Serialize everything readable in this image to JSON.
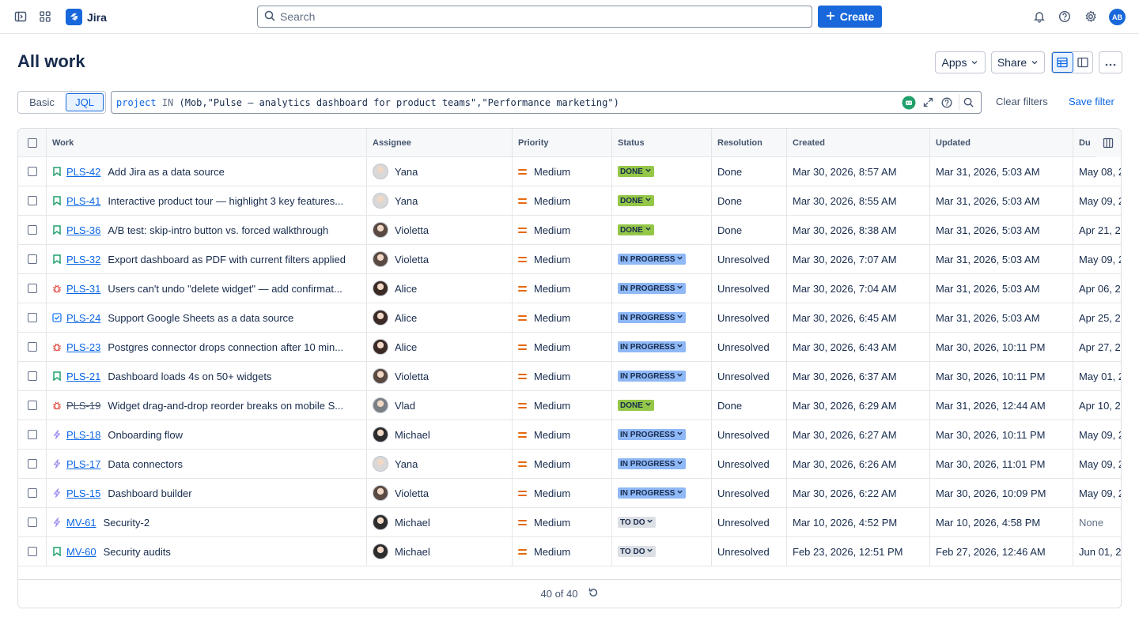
{
  "nav": {
    "app_name": "Jira",
    "search_placeholder": "Search",
    "create_label": "Create",
    "user_initials": "AB"
  },
  "header": {
    "title": "All work",
    "apps_label": "Apps",
    "share_label": "Share"
  },
  "filter": {
    "basic_label": "Basic",
    "jql_label": "JQL",
    "jql_keyword": "project",
    "jql_operator": "IN",
    "jql_value": "(Mob,\"Pulse — analytics dashboard for product teams\",\"Performance marketing\")",
    "clear_label": "Clear filters",
    "save_label": "Save filter"
  },
  "table": {
    "headers": {
      "work": "Work",
      "assignee": "Assignee",
      "priority": "Priority",
      "status": "Status",
      "resolution": "Resolution",
      "created": "Created",
      "updated": "Updated",
      "due": "Du"
    },
    "rows": [
      {
        "type": "story",
        "key": "PLS-42",
        "summary": "Add Jira as a data source",
        "assignee": "Yana",
        "priority": "Medium",
        "status": "DONE",
        "resolution": "Done",
        "created": "Mar 30, 2026, 8:57 AM",
        "updated": "Mar 31, 2026, 5:03 AM",
        "due": "May 08, 2"
      },
      {
        "type": "story",
        "key": "PLS-41",
        "summary": "Interactive product tour — highlight 3 key features...",
        "assignee": "Yana",
        "priority": "Medium",
        "status": "DONE",
        "resolution": "Done",
        "created": "Mar 30, 2026, 8:55 AM",
        "updated": "Mar 31, 2026, 5:03 AM",
        "due": "May 09, 2"
      },
      {
        "type": "story",
        "key": "PLS-36",
        "summary": "A/B test: skip-intro button vs. forced walkthrough",
        "assignee": "Violetta",
        "priority": "Medium",
        "status": "DONE",
        "resolution": "Done",
        "created": "Mar 30, 2026, 8:38 AM",
        "updated": "Mar 31, 2026, 5:03 AM",
        "due": "Apr 21, 20"
      },
      {
        "type": "story",
        "key": "PLS-32",
        "summary": "Export dashboard as PDF with current filters applied",
        "assignee": "Violetta",
        "priority": "Medium",
        "status": "IN PROGRESS",
        "resolution": "Unresolved",
        "created": "Mar 30, 2026, 7:07 AM",
        "updated": "Mar 31, 2026, 5:03 AM",
        "due": "May 09, 2"
      },
      {
        "type": "bug",
        "key": "PLS-31",
        "summary": "Users can't undo \"delete widget\" — add confirmat...",
        "assignee": "Alice",
        "priority": "Medium",
        "status": "IN PROGRESS",
        "resolution": "Unresolved",
        "created": "Mar 30, 2026, 7:04 AM",
        "updated": "Mar 31, 2026, 5:03 AM",
        "due": "Apr 06, 2"
      },
      {
        "type": "task",
        "key": "PLS-24",
        "summary": "Support Google Sheets as a data source",
        "assignee": "Alice",
        "priority": "Medium",
        "status": "IN PROGRESS",
        "resolution": "Unresolved",
        "created": "Mar 30, 2026, 6:45 AM",
        "updated": "Mar 31, 2026, 5:03 AM",
        "due": "Apr 25, 2"
      },
      {
        "type": "bug",
        "key": "PLS-23",
        "summary": "Postgres connector drops connection after 10 min...",
        "assignee": "Alice",
        "priority": "Medium",
        "status": "IN PROGRESS",
        "resolution": "Unresolved",
        "created": "Mar 30, 2026, 6:43 AM",
        "updated": "Mar 30, 2026, 10:11 PM",
        "due": "Apr 27, 20"
      },
      {
        "type": "story",
        "key": "PLS-21",
        "summary": "Dashboard loads 4s on 50+ widgets",
        "assignee": "Violetta",
        "priority": "Medium",
        "status": "IN PROGRESS",
        "resolution": "Unresolved",
        "created": "Mar 30, 2026, 6:37 AM",
        "updated": "Mar 30, 2026, 10:11 PM",
        "due": "May 01, 2"
      },
      {
        "type": "bug",
        "key": "PLS-19",
        "summary": "Widget drag-and-drop reorder breaks on mobile S...",
        "assignee": "Vlad",
        "priority": "Medium",
        "status": "DONE",
        "resolution": "Done",
        "created": "Mar 30, 2026, 6:29 AM",
        "updated": "Mar 31, 2026, 12:44 AM",
        "due": "Apr 10, 20",
        "strike": true
      },
      {
        "type": "epic",
        "key": "PLS-18",
        "summary": "Onboarding flow",
        "assignee": "Michael",
        "priority": "Medium",
        "status": "IN PROGRESS",
        "resolution": "Unresolved",
        "created": "Mar 30, 2026, 6:27 AM",
        "updated": "Mar 30, 2026, 10:11 PM",
        "due": "May 09, 2"
      },
      {
        "type": "epic",
        "key": "PLS-17",
        "summary": "Data connectors",
        "assignee": "Yana",
        "priority": "Medium",
        "status": "IN PROGRESS",
        "resolution": "Unresolved",
        "created": "Mar 30, 2026, 6:26 AM",
        "updated": "Mar 30, 2026, 11:01 PM",
        "due": "May 09, 2"
      },
      {
        "type": "epic",
        "key": "PLS-15",
        "summary": "Dashboard builder",
        "assignee": "Violetta",
        "priority": "Medium",
        "status": "IN PROGRESS",
        "resolution": "Unresolved",
        "created": "Mar 30, 2026, 6:22 AM",
        "updated": "Mar 30, 2026, 10:09 PM",
        "due": "May 09, 2"
      },
      {
        "type": "epic",
        "key": "MV-61",
        "summary": "Security-2",
        "assignee": "Michael",
        "priority": "Medium",
        "status": "TO DO",
        "resolution": "Unresolved",
        "created": "Mar 10, 2026, 4:52 PM",
        "updated": "Mar 10, 2026, 4:58 PM",
        "due": "None"
      },
      {
        "type": "story",
        "key": "MV-60",
        "summary": "Security audits",
        "assignee": "Michael",
        "priority": "Medium",
        "status": "TO DO",
        "resolution": "Unresolved",
        "created": "Feb 23, 2026, 12:51 PM",
        "updated": "Feb 27, 2026, 12:46 AM",
        "due": "Jun 01, 2"
      }
    ],
    "footer_count": "40 of 40"
  },
  "colors": {
    "accent": "#1868db",
    "done": "#94c748",
    "in_progress": "#8fb8f6",
    "to_do": "#dcdfe4",
    "priority_medium": "#e56910",
    "story": "#22a06b",
    "bug": "#e2483d",
    "task": "#1d7afc",
    "epic": "#9f8fef"
  }
}
